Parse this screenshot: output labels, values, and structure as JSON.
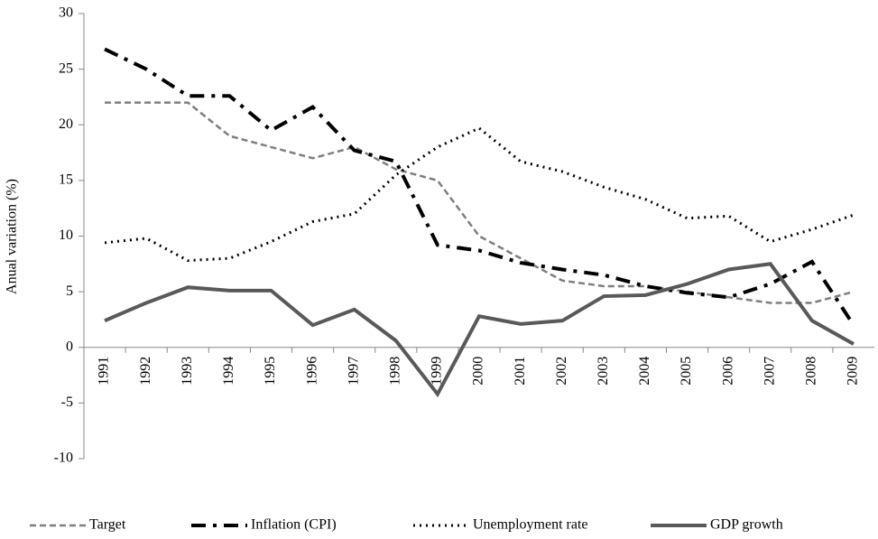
{
  "chart_data": {
    "type": "line",
    "y_label": "Anual variation (%)",
    "categories": [
      "1991",
      "1992",
      "1993",
      "1994",
      "1995",
      "1996",
      "1997",
      "1998",
      "1999",
      "2000",
      "2001",
      "2002",
      "2003",
      "2004",
      "2005",
      "2006",
      "2007",
      "2008",
      "2009"
    ],
    "series": [
      {
        "name": "Target",
        "color": "#7f7f7f",
        "linestyle": "dashed",
        "values": [
          22,
          22,
          22,
          19,
          18,
          17,
          18,
          16,
          15,
          10,
          8,
          6,
          5.5,
          5.5,
          5,
          4.5,
          4,
          4,
          5
        ]
      },
      {
        "name": "Inflation (CPI)",
        "color": "#000000",
        "linestyle": "dashdot",
        "values": [
          26.8,
          25,
          22.6,
          22.6,
          19.5,
          21.6,
          17.7,
          16.7,
          9.2,
          8.7,
          7.6,
          7.0,
          6.5,
          5.5,
          4.9,
          4.5,
          5.7,
          7.7,
          2.0
        ]
      },
      {
        "name": "Unemployment rate",
        "color": "#000000",
        "linestyle": "dotted",
        "values": [
          9.4,
          9.8,
          7.8,
          8.0,
          9.5,
          11.3,
          12.0,
          15.5,
          18.0,
          19.7,
          16.7,
          15.8,
          14.4,
          13.3,
          11.6,
          11.8,
          9.5,
          10.6,
          11.9
        ]
      },
      {
        "name": "GDP growth",
        "color": "#595959",
        "linestyle": "solid",
        "values": [
          2.4,
          4.0,
          5.4,
          5.1,
          5.1,
          2.0,
          3.4,
          0.6,
          -4.2,
          2.8,
          2.1,
          2.4,
          4.6,
          4.7,
          5.7,
          7.0,
          7.5,
          2.4,
          0.3
        ]
      }
    ],
    "ylim": [
      -10,
      30
    ],
    "yticks": [
      -10,
      -5,
      0,
      5,
      10,
      15,
      20,
      25,
      30
    ],
    "grid": false,
    "legend": "bottom"
  }
}
